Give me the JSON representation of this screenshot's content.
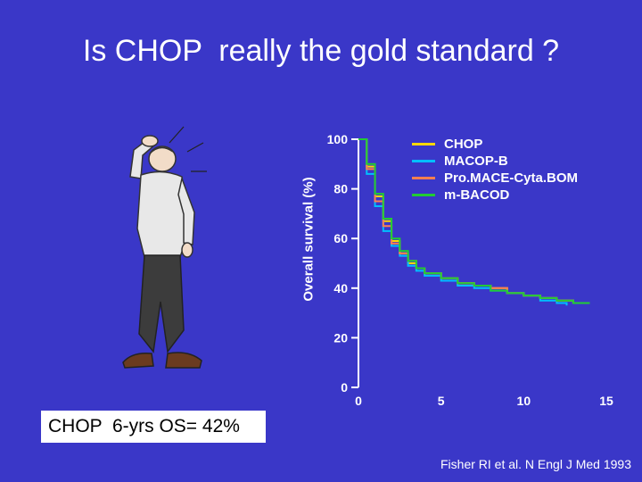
{
  "slide": {
    "title": "Is CHOP  really the gold standard ?",
    "os_box": "CHOP  6-yrs OS= 42%",
    "citation": "Fisher RI et al. N Engl J Med 1993"
  },
  "colors": {
    "background": "#3a37c8",
    "CHOP": "#ffd700",
    "MACOP-B": "#00bfff",
    "ProMACE-CytaBOM": "#ff7f50",
    "m-BACOD": "#22cc33"
  },
  "illustration": {
    "icon": "puzzled-man-scratching-head-icon"
  },
  "chart_data": {
    "type": "line",
    "xlabel": "",
    "ylabel": "Overall survival (%)",
    "xlim": [
      0,
      15
    ],
    "ylim": [
      0,
      100
    ],
    "x_ticks": [
      0,
      5,
      10,
      15
    ],
    "y_ticks": [
      0,
      20,
      40,
      60,
      80,
      100
    ],
    "legend_position": "top-right",
    "series": [
      {
        "name": "CHOP",
        "color": "#ffd700",
        "x": [
          0,
          0.5,
          1,
          1.5,
          2,
          2.5,
          3,
          3.5,
          4,
          5,
          6,
          7,
          8,
          9,
          10,
          11,
          12,
          13,
          13.7
        ],
        "y": [
          100,
          89,
          77,
          67,
          59,
          54,
          50,
          48,
          46,
          44,
          42,
          41,
          40,
          38,
          37,
          36,
          35,
          34,
          34
        ]
      },
      {
        "name": "MACOP-B",
        "color": "#00bfff",
        "x": [
          0,
          0.5,
          1,
          1.5,
          2,
          2.5,
          3,
          3.5,
          4,
          5,
          6,
          7,
          8,
          9,
          10,
          11,
          12,
          12.6
        ],
        "y": [
          100,
          86,
          73,
          63,
          57,
          53,
          49,
          47,
          45,
          43,
          41,
          40,
          39,
          38,
          37,
          35,
          34,
          33
        ]
      },
      {
        "name": "Pro.MACE-Cyta.BOM",
        "color": "#ff7f50",
        "x": [
          0,
          0.5,
          1,
          1.5,
          2,
          2.5,
          3,
          3.5,
          4,
          5,
          6,
          7,
          8,
          9,
          10,
          11,
          12,
          13
        ],
        "y": [
          100,
          88,
          75,
          65,
          58,
          54,
          51,
          48,
          46,
          44,
          42,
          41,
          40,
          38,
          37,
          36,
          35,
          34
        ]
      },
      {
        "name": "m-BACOD",
        "color": "#22cc33",
        "x": [
          0,
          0.5,
          1,
          1.5,
          2,
          2.5,
          3,
          3.5,
          4,
          5,
          6,
          7,
          8,
          9,
          10,
          11,
          12,
          13,
          14
        ],
        "y": [
          100,
          90,
          78,
          68,
          60,
          55,
          51,
          48,
          46,
          44,
          42,
          41,
          39,
          38,
          37,
          36,
          35,
          34,
          34
        ]
      }
    ]
  }
}
